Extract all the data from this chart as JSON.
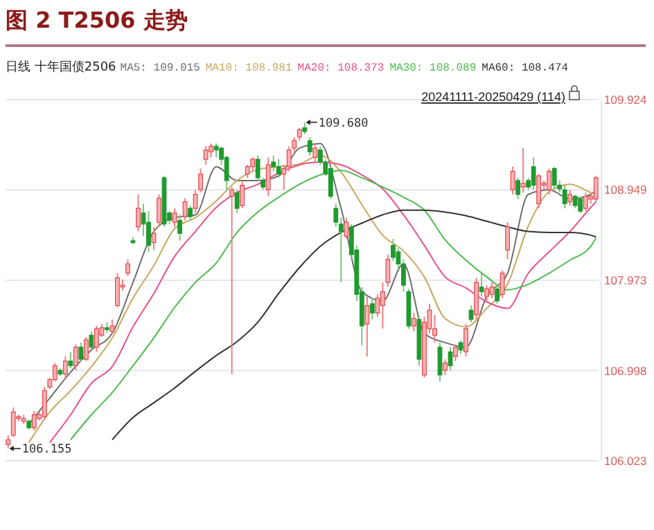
{
  "chart_data": {
    "type": "candlestick",
    "title": "图 2  T2506 走势",
    "subtitle": "日线 十年国债2506",
    "categories": [
      null,
      null,
      null,
      null,
      null,
      null,
      null,
      null,
      null,
      null,
      null,
      null,
      null,
      null,
      null,
      null,
      null,
      null,
      null,
      null,
      null,
      null,
      null,
      null,
      null,
      null,
      null,
      null,
      null,
      null,
      null,
      null,
      null,
      null,
      null,
      null,
      null,
      null,
      null,
      null,
      null,
      null,
      null,
      null,
      null,
      null,
      null,
      null,
      null,
      null,
      null,
      null,
      null,
      null,
      null,
      null,
      null,
      null,
      null,
      null,
      null,
      null,
      null,
      null,
      null,
      null,
      null,
      null,
      null,
      null,
      null,
      null,
      null,
      null,
      null,
      null,
      null,
      null,
      null,
      null,
      null,
      null,
      null,
      null,
      null,
      null,
      null,
      null,
      null,
      null,
      null,
      null,
      null,
      null,
      null,
      null,
      null,
      null,
      null,
      null,
      null,
      null,
      null,
      null,
      null,
      null,
      null,
      null,
      null,
      null,
      null,
      null,
      null,
      null
    ],
    "ohlc": [
      [
        106.2,
        106.3,
        106.155,
        106.25
      ],
      [
        106.3,
        106.6,
        106.28,
        106.55
      ],
      [
        106.48,
        106.52,
        106.45,
        106.5
      ],
      [
        106.45,
        106.52,
        106.42,
        106.48
      ],
      [
        106.45,
        106.47,
        106.36,
        106.38
      ],
      [
        106.38,
        106.56,
        106.35,
        106.52
      ],
      [
        106.48,
        106.55,
        106.46,
        106.52
      ],
      [
        106.5,
        106.82,
        106.48,
        106.78
      ],
      [
        106.82,
        106.92,
        106.8,
        106.9
      ],
      [
        106.9,
        107.08,
        106.88,
        107.05
      ],
      [
        107.0,
        107.02,
        106.94,
        106.96
      ],
      [
        106.96,
        107.15,
        106.9,
        107.1
      ],
      [
        107.1,
        107.2,
        107.02,
        107.05
      ],
      [
        107.05,
        107.28,
        107.0,
        107.25
      ],
      [
        107.25,
        107.3,
        107.1,
        107.12
      ],
      [
        107.12,
        107.36,
        107.1,
        107.33
      ],
      [
        107.38,
        107.42,
        107.22,
        107.25
      ],
      [
        107.25,
        107.48,
        107.2,
        107.45
      ],
      [
        107.38,
        107.5,
        107.36,
        107.46
      ],
      [
        107.46,
        107.52,
        107.4,
        107.44
      ],
      [
        107.42,
        107.55,
        107.4,
        107.48
      ],
      [
        107.7,
        108.05,
        107.68,
        108.0
      ],
      [
        107.9,
        107.98,
        107.86,
        107.92
      ],
      [
        108.05,
        108.2,
        108.02,
        108.15
      ],
      [
        108.4,
        108.44,
        108.36,
        108.38
      ],
      [
        108.55,
        108.9,
        108.5,
        108.75
      ],
      [
        108.7,
        108.8,
        108.45,
        108.58
      ],
      [
        108.6,
        108.72,
        108.28,
        108.35
      ],
      [
        108.38,
        108.55,
        108.3,
        108.48
      ],
      [
        108.6,
        108.9,
        108.55,
        108.86
      ],
      [
        109.08,
        109.1,
        108.55,
        108.58
      ],
      [
        108.7,
        108.72,
        108.58,
        108.62
      ],
      [
        108.6,
        108.75,
        108.55,
        108.7
      ],
      [
        108.62,
        108.68,
        108.4,
        108.48
      ],
      [
        108.66,
        108.86,
        108.62,
        108.82
      ],
      [
        108.75,
        108.78,
        108.62,
        108.66
      ],
      [
        108.75,
        108.95,
        108.7,
        108.9
      ],
      [
        108.95,
        109.18,
        108.92,
        109.12
      ],
      [
        109.28,
        109.42,
        109.22,
        109.38
      ],
      [
        109.36,
        109.45,
        109.3,
        109.42
      ],
      [
        109.42,
        109.45,
        109.3,
        109.38
      ],
      [
        109.4,
        109.42,
        109.22,
        109.28
      ],
      [
        109.3,
        109.32,
        108.95,
        109.05
      ],
      [
        108.88,
        108.98,
        106.96,
        108.95
      ],
      [
        108.92,
        108.95,
        108.7,
        108.75
      ],
      [
        108.78,
        109.05,
        108.75,
        109.0
      ],
      [
        109.12,
        109.22,
        109.08,
        109.2
      ],
      [
        109.2,
        109.3,
        109.15,
        109.28
      ],
      [
        109.28,
        109.32,
        109.05,
        109.08
      ],
      [
        109.05,
        109.08,
        108.95,
        108.98
      ],
      [
        108.95,
        109.3,
        108.88,
        109.22
      ],
      [
        109.25,
        109.32,
        109.15,
        109.2
      ],
      [
        109.2,
        109.28,
        109.08,
        109.12
      ],
      [
        109.12,
        109.22,
        108.95,
        109.18
      ],
      [
        109.2,
        109.42,
        109.15,
        109.38
      ],
      [
        109.4,
        109.52,
        109.35,
        109.48
      ],
      [
        109.52,
        109.62,
        109.48,
        109.6
      ],
      [
        109.62,
        109.68,
        109.55,
        109.58
      ],
      [
        109.48,
        109.52,
        109.32,
        109.36
      ],
      [
        109.3,
        109.45,
        109.25,
        109.4
      ],
      [
        109.38,
        109.42,
        109.22,
        109.25
      ],
      [
        109.25,
        109.28,
        109.1,
        109.12
      ],
      [
        109.18,
        109.2,
        108.85,
        108.88
      ],
      [
        108.75,
        108.8,
        108.55,
        108.6
      ],
      [
        108.58,
        108.65,
        107.95,
        108.5
      ],
      [
        108.45,
        108.65,
        108.42,
        108.6
      ],
      [
        108.55,
        108.58,
        108.2,
        108.25
      ],
      [
        108.3,
        108.35,
        107.75,
        107.82
      ],
      [
        107.85,
        107.9,
        107.27,
        107.48
      ],
      [
        107.5,
        107.8,
        107.15,
        107.7
      ],
      [
        107.72,
        107.78,
        107.55,
        107.62
      ],
      [
        107.62,
        107.82,
        107.58,
        107.78
      ],
      [
        107.7,
        107.95,
        107.45,
        107.85
      ],
      [
        107.95,
        108.25,
        107.9,
        108.2
      ],
      [
        108.35,
        108.42,
        108.18,
        108.22
      ],
      [
        108.28,
        108.32,
        108.1,
        108.15
      ],
      [
        108.15,
        108.2,
        107.85,
        107.92
      ],
      [
        107.85,
        107.88,
        107.45,
        107.48
      ],
      [
        107.48,
        107.62,
        107.42,
        107.56
      ],
      [
        107.55,
        107.58,
        107.05,
        107.12
      ],
      [
        106.95,
        107.58,
        106.92,
        107.52
      ],
      [
        107.45,
        107.72,
        107.4,
        107.65
      ],
      [
        107.38,
        107.6,
        107.3,
        107.45
      ],
      [
        107.25,
        107.3,
        106.88,
        106.95
      ],
      [
        107.0,
        107.12,
        106.95,
        107.08
      ],
      [
        107.2,
        107.25,
        107.0,
        107.05
      ],
      [
        107.15,
        107.28,
        107.1,
        107.25
      ],
      [
        107.3,
        107.32,
        107.18,
        107.22
      ],
      [
        107.2,
        107.5,
        107.15,
        107.45
      ],
      [
        107.65,
        107.7,
        107.52,
        107.55
      ],
      [
        107.6,
        108.0,
        107.55,
        107.95
      ],
      [
        107.9,
        108.05,
        107.8,
        107.85
      ],
      [
        107.8,
        107.92,
        107.75,
        107.88
      ],
      [
        107.82,
        107.95,
        107.78,
        107.9
      ],
      [
        107.88,
        107.92,
        107.72,
        107.75
      ],
      [
        107.82,
        108.08,
        107.78,
        108.05
      ],
      [
        108.3,
        108.6,
        108.2,
        108.55
      ],
      [
        108.95,
        109.2,
        108.9,
        109.15
      ],
      [
        109.05,
        109.08,
        108.85,
        108.9
      ],
      [
        108.98,
        109.4,
        108.92,
        109.02
      ],
      [
        109.05,
        109.08,
        108.95,
        108.98
      ],
      [
        109.2,
        109.3,
        108.95,
        109.0
      ],
      [
        108.8,
        109.12,
        108.75,
        109.1
      ],
      [
        109.0,
        109.05,
        108.95,
        109.02
      ],
      [
        108.95,
        109.18,
        108.9,
        109.15
      ],
      [
        109.18,
        109.2,
        108.95,
        109.0
      ],
      [
        109.0,
        109.05,
        108.92,
        108.96
      ],
      [
        108.95,
        109.0,
        108.75,
        108.8
      ],
      [
        108.82,
        108.95,
        108.78,
        108.9
      ],
      [
        108.88,
        108.9,
        108.75,
        108.78
      ],
      [
        108.85,
        108.88,
        108.7,
        108.72
      ],
      [
        108.75,
        108.92,
        108.72,
        108.88
      ],
      [
        108.85,
        108.9,
        108.8,
        108.88
      ],
      [
        108.85,
        109.1,
        108.82,
        109.08
      ]
    ],
    "series": [
      {
        "type": "line",
        "name": "MA5: 109.015",
        "color": "#6e6e6e",
        "values": [
          null,
          null,
          null,
          null,
          106.42,
          null,
          null,
          null,
          106.7,
          null,
          null,
          null,
          106.98,
          null,
          null,
          null,
          107.22,
          null,
          null,
          null,
          107.4,
          null,
          null,
          null,
          107.95,
          null,
          null,
          null,
          108.5,
          null,
          null,
          null,
          108.65,
          null,
          null,
          null,
          108.68,
          null,
          null,
          null,
          109.2,
          null,
          null,
          null,
          109.05,
          null,
          null,
          null,
          109.05,
          null,
          null,
          null,
          109.1,
          null,
          null,
          null,
          109.4,
          null,
          null,
          null,
          109.45,
          null,
          null,
          null,
          108.75,
          null,
          null,
          null,
          107.85,
          null,
          null,
          null,
          107.75,
          null,
          null,
          null,
          108.15,
          null,
          null,
          null,
          107.4,
          null,
          null,
          null,
          107.3,
          null,
          null,
          null,
          107.25,
          null,
          null,
          null,
          107.8,
          null,
          null,
          null,
          108.05,
          null,
          null,
          null,
          108.9,
          null,
          null,
          null,
          108.95,
          null,
          null,
          null,
          108.85,
          null,
          null,
          null,
          108.9,
          108.95
        ]
      },
      {
        "type": "line",
        "name": "MA10: 108.981",
        "color": "#c8a860",
        "values": [
          null,
          null,
          null,
          null,
          106.22,
          null,
          null,
          null,
          106.55,
          null,
          null,
          null,
          106.78,
          null,
          null,
          null,
          107.04,
          null,
          null,
          null,
          107.35,
          null,
          null,
          null,
          107.78,
          null,
          null,
          null,
          108.13,
          null,
          null,
          null,
          108.53,
          null,
          null,
          null,
          108.65,
          null,
          null,
          null,
          108.83,
          null,
          null,
          null,
          109.05,
          null,
          null,
          null,
          109.17,
          null,
          null,
          null,
          109.2,
          null,
          null,
          null,
          109.23,
          null,
          null,
          null,
          109.32,
          null,
          null,
          null,
          109.14,
          null,
          null,
          null,
          108.79,
          null,
          null,
          null,
          108.46,
          null,
          null,
          null,
          108.29,
          null,
          null,
          null,
          108.01,
          null,
          null,
          null,
          107.56,
          null,
          null,
          null,
          107.47,
          null,
          null,
          null,
          107.67,
          null,
          null,
          null,
          107.93,
          null,
          null,
          null,
          108.56,
          null,
          null,
          null,
          108.93,
          null,
          null,
          null,
          109.01,
          null,
          null,
          null,
          108.92,
          108.9
        ]
      },
      {
        "type": "line",
        "name": "MA20: 108.373",
        "color": "#e8508c",
        "values": [
          null,
          null,
          null,
          null,
          null,
          null,
          null,
          null,
          106.22,
          null,
          null,
          null,
          106.52,
          null,
          null,
          null,
          106.86,
          null,
          null,
          null,
          107.04,
          null,
          null,
          null,
          107.47,
          null,
          null,
          null,
          107.83,
          null,
          null,
          null,
          108.23,
          null,
          null,
          null,
          108.5,
          null,
          null,
          null,
          108.76,
          null,
          null,
          null,
          108.92,
          null,
          null,
          null,
          109.01,
          null,
          null,
          null,
          109.13,
          null,
          null,
          null,
          109.22,
          null,
          null,
          null,
          109.25,
          null,
          null,
          null,
          109.22,
          null,
          null,
          null,
          109.11,
          null,
          null,
          null,
          108.96,
          null,
          null,
          null,
          108.68,
          null,
          null,
          null,
          108.35,
          null,
          null,
          null,
          108.01,
          null,
          null,
          null,
          107.89,
          null,
          null,
          null,
          107.74,
          null,
          null,
          null,
          107.67,
          null,
          null,
          null,
          108.05,
          null,
          null,
          null,
          108.28,
          null,
          null,
          null,
          108.5,
          null,
          null,
          null,
          108.76,
          108.82
        ]
      },
      {
        "type": "line",
        "name": "MA30: 108.089",
        "color": "#4cbb4c",
        "values": [
          null,
          null,
          null,
          null,
          null,
          null,
          null,
          null,
          null,
          null,
          null,
          null,
          106.25,
          null,
          null,
          null,
          106.52,
          null,
          null,
          null,
          106.76,
          null,
          null,
          null,
          107.05,
          null,
          null,
          null,
          107.35,
          null,
          null,
          null,
          107.68,
          null,
          null,
          null,
          107.95,
          null,
          null,
          null,
          108.16,
          null,
          null,
          null,
          108.49,
          null,
          null,
          null,
          108.71,
          null,
          null,
          null,
          108.87,
          null,
          null,
          null,
          109.01,
          null,
          null,
          null,
          109.11,
          null,
          null,
          null,
          109.16,
          null,
          null,
          null,
          109.08,
          null,
          null,
          null,
          108.98,
          null,
          null,
          null,
          108.87,
          null,
          null,
          null,
          108.73,
          null,
          null,
          null,
          108.41,
          null,
          null,
          null,
          108.19,
          null,
          null,
          null,
          108.01,
          null,
          null,
          null,
          107.87,
          null,
          null,
          null,
          107.93,
          null,
          null,
          null,
          108.05,
          null,
          null,
          null,
          108.19,
          null,
          null,
          null,
          108.34,
          108.43
        ]
      },
      {
        "type": "line",
        "name": "MA60: 108.474",
        "color": "#333333",
        "values": [
          null,
          null,
          null,
          null,
          null,
          null,
          null,
          null,
          null,
          null,
          null,
          null,
          null,
          null,
          null,
          null,
          null,
          null,
          null,
          null,
          106.25,
          null,
          null,
          null,
          106.49,
          null,
          null,
          null,
          106.65,
          null,
          null,
          null,
          106.81,
          null,
          null,
          null,
          106.99,
          null,
          null,
          null,
          107.16,
          null,
          null,
          null,
          107.31,
          null,
          null,
          null,
          107.52,
          null,
          null,
          null,
          107.83,
          null,
          null,
          null,
          108.11,
          null,
          null,
          null,
          108.34,
          null,
          null,
          null,
          108.49,
          null,
          null,
          null,
          108.59,
          null,
          null,
          null,
          108.68,
          null,
          null,
          null,
          108.73,
          null,
          null,
          null,
          108.73,
          null,
          null,
          null,
          108.71,
          null,
          null,
          null,
          108.67,
          null,
          null,
          null,
          108.61,
          null,
          null,
          null,
          108.55,
          null,
          null,
          null,
          108.5,
          null,
          null,
          null,
          108.49,
          null,
          null,
          null,
          108.49,
          null,
          null,
          null,
          108.46,
          108.44
        ]
      }
    ],
    "ylim": [
      106.023,
      109.924
    ],
    "yticks": [
      106.023,
      106.998,
      107.973,
      108.949,
      109.924
    ],
    "grid": "y",
    "tick_labels": "y",
    "legend": "top",
    "annotations": [
      "20241111-20250429 (114)",
      "109.680",
      "106.155"
    ]
  }
}
